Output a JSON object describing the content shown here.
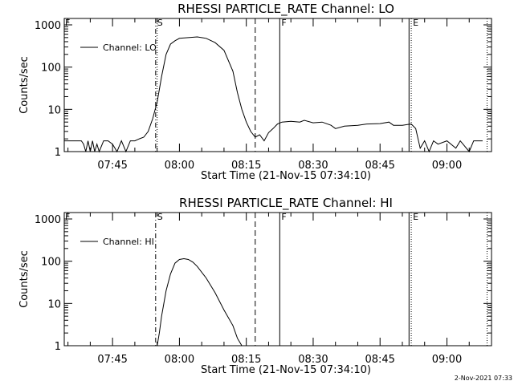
{
  "footer_date": "2-Nov-2021 07:33",
  "chart_data": [
    {
      "type": "line",
      "title": "RHESSI PARTICLE_RATE Channel: LO",
      "xlabel": "Start Time (21-Nov-15 07:34:10)",
      "ylabel": "Counts/sec",
      "yscale": "log",
      "ylim": [
        1,
        1000
      ],
      "xlim": [
        "07:34:10",
        "09:10:00"
      ],
      "x_ticks": [
        "07:45",
        "08:00",
        "08:15",
        "08:30",
        "08:45",
        "09:00"
      ],
      "y_ticks": [
        "1",
        "10",
        "100",
        "1000"
      ],
      "legend": "top-left",
      "series": [
        {
          "name": "Channel: LO",
          "points": [
            [
              "07:34:10",
              1.8
            ],
            [
              "07:38:00",
              1.8
            ],
            [
              "07:38:30",
              1.5
            ],
            [
              "07:39:00",
              1
            ],
            [
              "07:39:30",
              1.8
            ],
            [
              "07:40:00",
              1
            ],
            [
              "07:40:30",
              1.8
            ],
            [
              "07:41:00",
              1
            ],
            [
              "07:41:30",
              1.5
            ],
            [
              "07:42:00",
              1
            ],
            [
              "07:43:00",
              1.8
            ],
            [
              "07:44:00",
              1.8
            ],
            [
              "07:45:00",
              1.5
            ],
            [
              "07:46:00",
              1
            ],
            [
              "07:47:00",
              1.8
            ],
            [
              "07:48:00",
              1
            ],
            [
              "07:49:00",
              1.8
            ],
            [
              "07:50:00",
              1.8
            ],
            [
              "07:51:00",
              2
            ],
            [
              "07:52:00",
              2.2
            ],
            [
              "07:53:00",
              3
            ],
            [
              "07:54:00",
              6
            ],
            [
              "07:55:00",
              15
            ],
            [
              "07:56:00",
              60
            ],
            [
              "07:57:00",
              200
            ],
            [
              "07:58:00",
              350
            ],
            [
              "07:59:00",
              420
            ],
            [
              "08:00:00",
              480
            ],
            [
              "08:02:00",
              500
            ],
            [
              "08:04:00",
              520
            ],
            [
              "08:06:00",
              480
            ],
            [
              "08:08:00",
              380
            ],
            [
              "08:10:00",
              250
            ],
            [
              "08:12:00",
              80
            ],
            [
              "08:13:00",
              25
            ],
            [
              "08:14:00",
              10
            ],
            [
              "08:15:00",
              5
            ],
            [
              "08:16:00",
              3
            ],
            [
              "08:17:00",
              2.2
            ],
            [
              "08:18:00",
              2.5
            ],
            [
              "08:19:00",
              1.8
            ],
            [
              "08:20:00",
              2.8
            ],
            [
              "08:21:00",
              3.5
            ],
            [
              "08:22:00",
              4.5
            ],
            [
              "08:23:00",
              5
            ],
            [
              "08:25:00",
              5.2
            ],
            [
              "08:27:00",
              5
            ],
            [
              "08:28:00",
              5.5
            ],
            [
              "08:30:00",
              4.8
            ],
            [
              "08:32:00",
              5
            ],
            [
              "08:34:00",
              4.2
            ],
            [
              "08:35:00",
              3.5
            ],
            [
              "08:37:00",
              4
            ],
            [
              "08:40:00",
              4.2
            ],
            [
              "08:42:00",
              4.5
            ],
            [
              "08:45:00",
              4.6
            ],
            [
              "08:47:00",
              5
            ],
            [
              "08:48:00",
              4.2
            ],
            [
              "08:50:00",
              4.2
            ],
            [
              "08:52:00",
              4.5
            ],
            [
              "08:53:00",
              3.5
            ],
            [
              "08:54:00",
              1.2
            ],
            [
              "08:55:00",
              1.8
            ],
            [
              "08:56:00",
              1
            ],
            [
              "08:57:00",
              1.8
            ],
            [
              "08:58:00",
              1.5
            ],
            [
              "09:00:00",
              1.8
            ],
            [
              "09:02:00",
              1.2
            ],
            [
              "09:03:00",
              1.8
            ],
            [
              "09:05:00",
              1
            ],
            [
              "09:06:00",
              1.8
            ],
            [
              "09:08:00",
              1.8
            ]
          ]
        }
      ],
      "markers": [
        {
          "label": "S",
          "time": "07:54:40",
          "style": "dash-dot"
        },
        {
          "label": "",
          "time": "07:55:00",
          "style": "dotted"
        },
        {
          "label": "",
          "time": "08:17:00",
          "style": "dashed"
        },
        {
          "label": "F",
          "time": "08:22:30",
          "style": "solid"
        },
        {
          "label": "",
          "time": "08:51:30",
          "style": "solid"
        },
        {
          "label": "E",
          "time": "08:52:00",
          "style": "dotted"
        },
        {
          "label": "",
          "time": "09:09:00",
          "style": "dotted"
        }
      ],
      "corner_marker": "F"
    },
    {
      "type": "line",
      "title": "RHESSI PARTICLE_RATE Channel: HI",
      "xlabel": "Start Time (21-Nov-15 07:34:10)",
      "ylabel": "Counts/sec",
      "yscale": "log",
      "ylim": [
        1,
        1000
      ],
      "xlim": [
        "07:34:10",
        "09:10:00"
      ],
      "x_ticks": [
        "07:45",
        "08:00",
        "08:15",
        "08:30",
        "08:45",
        "09:00"
      ],
      "y_ticks": [
        "1",
        "10",
        "100",
        "1000"
      ],
      "legend": "top-left",
      "series": [
        {
          "name": "Channel: HI",
          "points": [
            [
              "07:55:00",
              1
            ],
            [
              "07:55:30",
              2
            ],
            [
              "07:56:00",
              5
            ],
            [
              "07:57:00",
              20
            ],
            [
              "07:58:00",
              50
            ],
            [
              "07:59:00",
              90
            ],
            [
              "08:00:00",
              110
            ],
            [
              "08:01:00",
              115
            ],
            [
              "08:02:00",
              110
            ],
            [
              "08:03:00",
              95
            ],
            [
              "08:04:00",
              75
            ],
            [
              "08:06:00",
              40
            ],
            [
              "08:08:00",
              18
            ],
            [
              "08:10:00",
              7
            ],
            [
              "08:12:00",
              3
            ],
            [
              "08:13:00",
              1.5
            ],
            [
              "08:14:00",
              1
            ]
          ]
        }
      ],
      "markers": [
        {
          "label": "S",
          "time": "07:54:40",
          "style": "dash-dot"
        },
        {
          "label": "",
          "time": "08:17:00",
          "style": "dashed"
        },
        {
          "label": "F",
          "time": "08:22:30",
          "style": "solid"
        },
        {
          "label": "",
          "time": "08:51:30",
          "style": "solid"
        },
        {
          "label": "E",
          "time": "08:52:00",
          "style": "dotted"
        },
        {
          "label": "",
          "time": "09:09:00",
          "style": "dotted"
        }
      ],
      "corner_marker": "F"
    }
  ]
}
